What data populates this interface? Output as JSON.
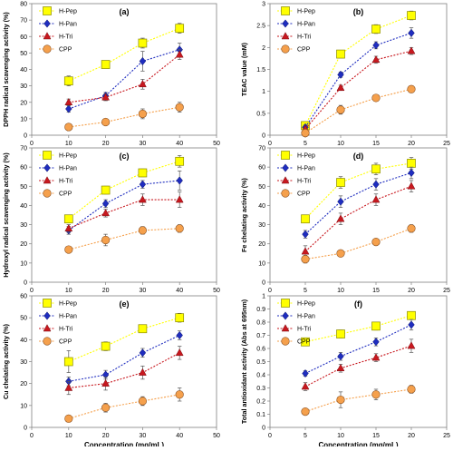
{
  "colors": {
    "H-Pep": "#FFFF00",
    "H-Pan": "#1F2DBF",
    "H-Tri": "#C8181F",
    "CPP": "#F5A04C"
  },
  "marker_shapes": {
    "H-Pep": "square",
    "H-Pan": "diamond",
    "H-Tri": "triangle",
    "CPP": "circle"
  },
  "chart_data": [
    {
      "type": "line",
      "panel_label": "(a)",
      "ylabel": "DPPH radical scavenging activity (%)",
      "xlabel": "",
      "x": [
        10,
        20,
        30,
        40
      ],
      "xlim": [
        0,
        50
      ],
      "xticks": [
        "0",
        "10",
        "20",
        "30",
        "40",
        "50"
      ],
      "ylim": [
        0,
        80
      ],
      "yticks": [
        "0",
        "10",
        "20",
        "30",
        "40",
        "50",
        "60",
        "70",
        "80"
      ],
      "legend_position": "top-left",
      "grid": false,
      "series": [
        {
          "name": "H-Pep",
          "values": [
            33,
            43,
            56,
            65
          ],
          "errors": [
            3,
            2,
            3,
            3
          ]
        },
        {
          "name": "H-Pan",
          "values": [
            16,
            24,
            45,
            52
          ],
          "errors": [
            2,
            2,
            6,
            4
          ]
        },
        {
          "name": "H-Tri",
          "values": [
            20,
            23,
            31,
            49
          ],
          "errors": [
            2,
            2,
            3,
            3
          ]
        },
        {
          "name": "CPP",
          "values": [
            5,
            8,
            13,
            17
          ],
          "errors": [
            1,
            1,
            3,
            3
          ]
        }
      ]
    },
    {
      "type": "line",
      "panel_label": "(b)",
      "ylabel": "TEAC value (mM)",
      "xlabel": "",
      "x": [
        5,
        10,
        15,
        20
      ],
      "xlim": [
        0,
        25
      ],
      "xticks": [
        "0",
        "5",
        "10",
        "15",
        "20",
        "25"
      ],
      "ylim": [
        0,
        3
      ],
      "yticks": [
        "0",
        "0.5",
        "1",
        "1.5",
        "2",
        "2.5",
        "3"
      ],
      "legend_position": "top-left",
      "grid": false,
      "series": [
        {
          "name": "H-Pep",
          "values": [
            0.22,
            1.85,
            2.42,
            2.73
          ],
          "errors": [
            0.05,
            0.08,
            0.1,
            0.1
          ]
        },
        {
          "name": "H-Pan",
          "values": [
            0.18,
            1.38,
            2.05,
            2.33
          ],
          "errors": [
            0.05,
            0.06,
            0.08,
            0.12
          ]
        },
        {
          "name": "H-Tri",
          "values": [
            0.14,
            1.08,
            1.72,
            1.92
          ],
          "errors": [
            0.04,
            0.06,
            0.08,
            0.08
          ]
        },
        {
          "name": "CPP",
          "values": [
            0.05,
            0.58,
            0.85,
            1.05
          ],
          "errors": [
            0.03,
            0.1,
            0.06,
            0.08
          ]
        }
      ]
    },
    {
      "type": "line",
      "panel_label": "(c)",
      "ylabel": "Hydroxyl radical scavenging activity (%)",
      "xlabel": "",
      "x": [
        10,
        20,
        30,
        40
      ],
      "xlim": [
        0,
        50
      ],
      "xticks": [
        "0",
        "10",
        "20",
        "30",
        "40",
        "50"
      ],
      "ylim": [
        0,
        70
      ],
      "yticks": [
        "0",
        "10",
        "20",
        "30",
        "40",
        "50",
        "60",
        "70"
      ],
      "legend_position": "top-left",
      "grid": false,
      "series": [
        {
          "name": "H-Pep",
          "values": [
            33,
            48,
            57,
            63
          ],
          "errors": [
            2,
            2,
            2,
            3
          ]
        },
        {
          "name": "H-Pan",
          "values": [
            27,
            41,
            51,
            53
          ],
          "errors": [
            2,
            2,
            2,
            5
          ]
        },
        {
          "name": "H-Tri",
          "values": [
            28,
            36,
            43,
            43
          ],
          "errors": [
            2,
            2,
            3,
            4
          ]
        },
        {
          "name": "CPP",
          "values": [
            17,
            22,
            27,
            28
          ],
          "errors": [
            1,
            3,
            2,
            2
          ]
        }
      ]
    },
    {
      "type": "line",
      "panel_label": "(d)",
      "ylabel": "Fe chelating activity (%)",
      "xlabel": "",
      "x": [
        5,
        10,
        15,
        20
      ],
      "xlim": [
        0,
        25
      ],
      "xticks": [
        "0",
        "5",
        "10",
        "15",
        "20",
        "25"
      ],
      "ylim": [
        0,
        70
      ],
      "yticks": [
        "0",
        "10",
        "20",
        "30",
        "40",
        "50",
        "60",
        "70"
      ],
      "legend_position": "top-left",
      "grid": false,
      "series": [
        {
          "name": "H-Pep",
          "values": [
            33,
            52,
            59,
            62
          ],
          "errors": [
            2,
            3,
            3,
            3
          ]
        },
        {
          "name": "H-Pan",
          "values": [
            25,
            42,
            51,
            57
          ],
          "errors": [
            2,
            3,
            3,
            3
          ]
        },
        {
          "name": "H-Tri",
          "values": [
            16,
            33,
            43,
            50
          ],
          "errors": [
            3,
            3,
            3,
            3
          ]
        },
        {
          "name": "CPP",
          "values": [
            12,
            15,
            21,
            28
          ],
          "errors": [
            2,
            1,
            1,
            2
          ]
        }
      ]
    },
    {
      "type": "line",
      "panel_label": "(e)",
      "ylabel": "Cu chelating activity (%)",
      "xlabel": "Concentration (mg/mL)",
      "x": [
        10,
        20,
        30,
        40
      ],
      "xlim": [
        0,
        50
      ],
      "xticks": [
        "0",
        "10",
        "20",
        "30",
        "40",
        "50"
      ],
      "ylim": [
        0,
        60
      ],
      "yticks": [
        "0",
        "10",
        "20",
        "30",
        "40",
        "50",
        "60"
      ],
      "legend_position": "top-left",
      "grid": false,
      "series": [
        {
          "name": "H-Pep",
          "values": [
            30,
            37,
            45,
            50
          ],
          "errors": [
            5,
            2,
            1,
            2
          ]
        },
        {
          "name": "H-Pan",
          "values": [
            21,
            24,
            34,
            42
          ],
          "errors": [
            2,
            2,
            2,
            2
          ]
        },
        {
          "name": "H-Tri",
          "values": [
            18,
            20,
            25,
            34
          ],
          "errors": [
            3,
            3,
            3,
            3
          ]
        },
        {
          "name": "CPP",
          "values": [
            4,
            9,
            12,
            15
          ],
          "errors": [
            1,
            2,
            2,
            3
          ]
        }
      ]
    },
    {
      "type": "line",
      "panel_label": "(f)",
      "ylabel": "Total antioxidant activity (Abs at 695nm)",
      "xlabel": "Concentration (mg/mL)",
      "x": [
        5,
        10,
        15,
        20
      ],
      "xlim": [
        0,
        25
      ],
      "xticks": [
        "0",
        "5",
        "10",
        "15",
        "20",
        "25"
      ],
      "ylim": [
        0,
        1
      ],
      "yticks": [
        "0",
        "0.1",
        "0.2",
        "0.3",
        "0.4",
        "0.5",
        "0.6",
        "0.7",
        "0.8",
        "0.9",
        "1"
      ],
      "legend_position": "top-left",
      "grid": false,
      "series": [
        {
          "name": "H-Pep",
          "values": [
            0.65,
            0.71,
            0.77,
            0.85
          ],
          "errors": [
            0.03,
            0.03,
            0.03,
            0.03
          ]
        },
        {
          "name": "H-Pan",
          "values": [
            0.41,
            0.54,
            0.65,
            0.78
          ],
          "errors": [
            0.02,
            0.03,
            0.03,
            0.04
          ]
        },
        {
          "name": "H-Tri",
          "values": [
            0.31,
            0.45,
            0.53,
            0.62
          ],
          "errors": [
            0.03,
            0.03,
            0.03,
            0.05
          ]
        },
        {
          "name": "CPP",
          "values": [
            0.12,
            0.21,
            0.25,
            0.29
          ],
          "errors": [
            0.02,
            0.06,
            0.04,
            0.03
          ]
        }
      ]
    }
  ]
}
